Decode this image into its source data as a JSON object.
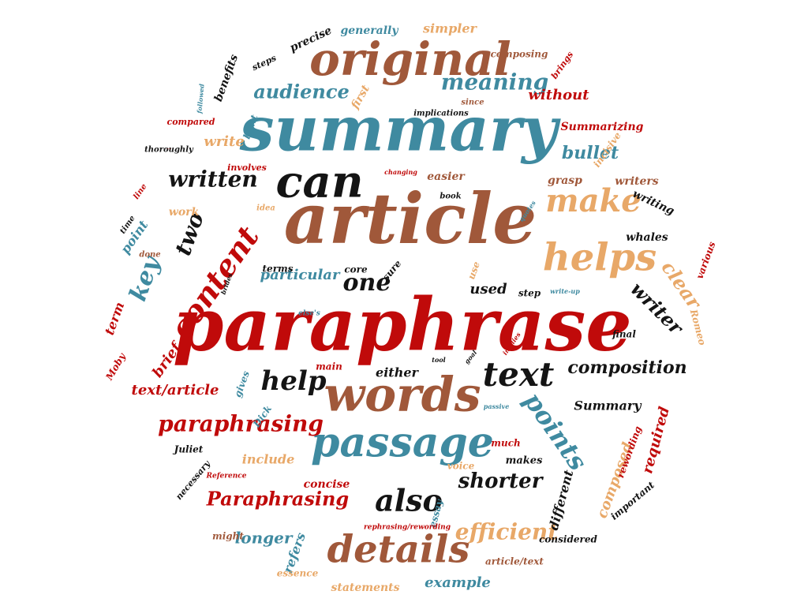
{
  "palette": {
    "red": "#c00a0a",
    "teal": "#3f8aa0",
    "brown": "#a0583a",
    "tan": "#e8a868",
    "black": "#141414"
  },
  "words": [
    {
      "text": "paraphrase",
      "color": "red"
    },
    {
      "text": "article",
      "color": "brown"
    },
    {
      "text": "summary",
      "color": "teal"
    },
    {
      "text": "words",
      "color": "brown"
    },
    {
      "text": "original",
      "color": "brown"
    },
    {
      "text": "can",
      "color": "black"
    },
    {
      "text": "passage",
      "color": "teal"
    },
    {
      "text": "details",
      "color": "brown"
    },
    {
      "text": "helps",
      "color": "tan"
    },
    {
      "text": "make",
      "color": "tan"
    },
    {
      "text": "content",
      "color": "red"
    },
    {
      "text": "text",
      "color": "black"
    },
    {
      "text": "also",
      "color": "black"
    },
    {
      "text": "help",
      "color": "black"
    },
    {
      "text": "points",
      "color": "teal"
    },
    {
      "text": "key",
      "color": "teal"
    },
    {
      "text": "meaning",
      "color": "teal"
    },
    {
      "text": "paraphrasing",
      "color": "red"
    },
    {
      "text": "Paraphrasing",
      "color": "red"
    },
    {
      "text": "two",
      "color": "black"
    },
    {
      "text": "one",
      "color": "black"
    },
    {
      "text": "written",
      "color": "black"
    },
    {
      "text": "composition",
      "color": "black"
    },
    {
      "text": "efficient",
      "color": "tan"
    },
    {
      "text": "shorter",
      "color": "black"
    },
    {
      "text": "writer",
      "color": "black"
    },
    {
      "text": "clear",
      "color": "tan"
    },
    {
      "text": "audience",
      "color": "teal"
    },
    {
      "text": "without",
      "color": "red"
    },
    {
      "text": "bullet",
      "color": "teal"
    },
    {
      "text": "longer",
      "color": "teal"
    },
    {
      "text": "example",
      "color": "teal"
    },
    {
      "text": "composed",
      "color": "tan"
    },
    {
      "text": "different",
      "color": "black"
    },
    {
      "text": "required",
      "color": "red"
    },
    {
      "text": "text/article",
      "color": "red"
    },
    {
      "text": "Summary",
      "color": "black"
    },
    {
      "text": "particular",
      "color": "teal"
    },
    {
      "text": "used",
      "color": "black"
    },
    {
      "text": "either",
      "color": "black"
    },
    {
      "text": "include",
      "color": "tan"
    },
    {
      "text": "brief",
      "color": "red"
    },
    {
      "text": "refers",
      "color": "teal"
    },
    {
      "text": "statements",
      "color": "tan"
    },
    {
      "text": "concise",
      "color": "red"
    },
    {
      "text": "makes",
      "color": "black"
    },
    {
      "text": "whales",
      "color": "black"
    },
    {
      "text": "writing",
      "color": "black"
    },
    {
      "text": "writers",
      "color": "brown"
    },
    {
      "text": "grasp",
      "color": "brown"
    },
    {
      "text": "easier",
      "color": "brown"
    },
    {
      "text": "simpler",
      "color": "tan"
    },
    {
      "text": "generally",
      "color": "teal"
    },
    {
      "text": "precise",
      "color": "black"
    },
    {
      "text": "benefits",
      "color": "black"
    },
    {
      "text": "Summarizing",
      "color": "red"
    },
    {
      "text": "incisive",
      "color": "tan"
    },
    {
      "text": "write",
      "color": "tan"
    },
    {
      "text": "point",
      "color": "teal"
    },
    {
      "text": "work",
      "color": "tan"
    },
    {
      "text": "term",
      "color": "red"
    },
    {
      "text": "step",
      "color": "black"
    },
    {
      "text": "final",
      "color": "black"
    },
    {
      "text": "core",
      "color": "black"
    },
    {
      "text": "sure",
      "color": "black"
    },
    {
      "text": "terms",
      "color": "black"
    },
    {
      "text": "use",
      "color": "tan"
    },
    {
      "text": "gives",
      "color": "teal"
    },
    {
      "text": "main",
      "color": "red"
    },
    {
      "text": "Dick",
      "color": "teal"
    },
    {
      "text": "Moby",
      "color": "red"
    },
    {
      "text": "Juliet",
      "color": "black"
    },
    {
      "text": "Romeo",
      "color": "tan"
    },
    {
      "text": "various",
      "color": "red"
    },
    {
      "text": "rewording",
      "color": "red"
    },
    {
      "text": "important",
      "color": "black"
    },
    {
      "text": "considered",
      "color": "black"
    },
    {
      "text": "article/text",
      "color": "brown"
    },
    {
      "text": "essay",
      "color": "teal"
    },
    {
      "text": "voice",
      "color": "tan"
    },
    {
      "text": "much",
      "color": "red"
    },
    {
      "text": "might",
      "color": "brown"
    },
    {
      "text": "essence",
      "color": "tan"
    },
    {
      "text": "necessary",
      "color": "black"
    },
    {
      "text": "Reference",
      "color": "red"
    },
    {
      "text": "rephrasing/rewording",
      "color": "red"
    },
    {
      "text": "composing",
      "color": "brown"
    },
    {
      "text": "brings",
      "color": "red"
    },
    {
      "text": "since",
      "color": "brown"
    },
    {
      "text": "implications",
      "color": "black"
    },
    {
      "text": "first",
      "color": "tan"
    },
    {
      "text": "steps",
      "color": "black"
    },
    {
      "text": "light",
      "color": "teal"
    },
    {
      "text": "compared",
      "color": "red"
    },
    {
      "text": "involves",
      "color": "red"
    },
    {
      "text": "thoroughly",
      "color": "black"
    },
    {
      "text": "Modifying",
      "color": "red"
    },
    {
      "text": "followed",
      "color": "teal"
    },
    {
      "text": "line",
      "color": "red"
    },
    {
      "text": "time",
      "color": "black"
    },
    {
      "text": "done",
      "color": "brown"
    },
    {
      "text": "idea",
      "color": "tan"
    },
    {
      "text": "book",
      "color": "black"
    },
    {
      "text": "changing",
      "color": "red"
    },
    {
      "text": "quotes",
      "color": "teal"
    },
    {
      "text": "write-up",
      "color": "teal"
    },
    {
      "text": "else's",
      "color": "teal"
    },
    {
      "text": "tool",
      "color": "black"
    },
    {
      "text": "implies",
      "color": "red"
    },
    {
      "text": "passive",
      "color": "teal"
    },
    {
      "text": "brides",
      "color": "black"
    },
    {
      "text": "goal",
      "color": "black"
    }
  ]
}
